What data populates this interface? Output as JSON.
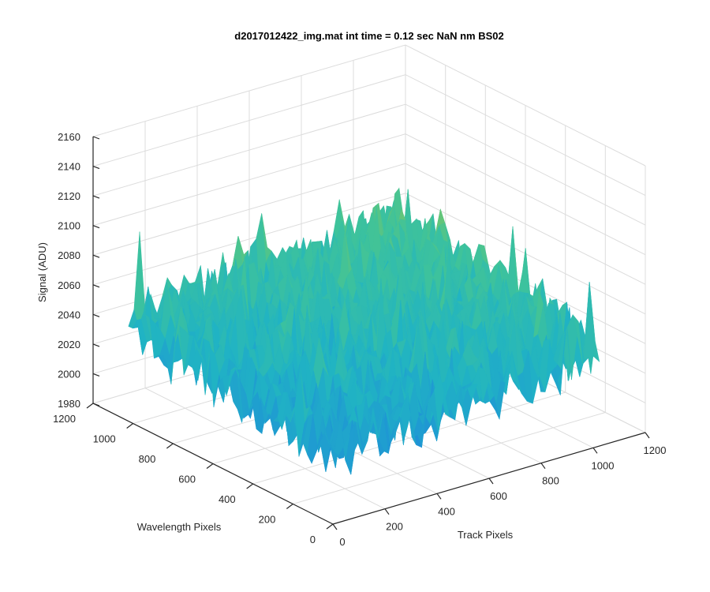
{
  "window": {
    "title": "d2017012422_img.mat int time = 0.12 sec  NaN nm BS02"
  },
  "chart_data": {
    "type": "surface",
    "title": "d2017012422_img.mat int time = 0.12 sec  NaN nm BS02",
    "xlabel": "Track Pixels",
    "ylabel": "Wavelength Pixels",
    "zlabel": "Signal (ADU)",
    "xlim": [
      0,
      1200
    ],
    "ylim": [
      0,
      1200
    ],
    "zlim": [
      1980,
      2160
    ],
    "x_ticks": [
      0,
      200,
      400,
      600,
      800,
      1000,
      1200
    ],
    "y_ticks": [
      0,
      200,
      400,
      600,
      800,
      1000,
      1200
    ],
    "z_ticks": [
      1980,
      2000,
      2020,
      2040,
      2060,
      2080,
      2100,
      2120,
      2140,
      2160
    ],
    "x_tick_labels": [
      "0",
      "200",
      "400",
      "600",
      "800",
      "1000",
      "1200"
    ],
    "y_tick_labels": [
      "0",
      "200",
      "400",
      "600",
      "800",
      "1000",
      "1200"
    ],
    "z_tick_labels": [
      "1980",
      "2000",
      "2020",
      "2040",
      "2060",
      "2080",
      "2100",
      "2120",
      "2140",
      "2160"
    ],
    "data_extent": {
      "x": [
        1,
        1024
      ],
      "y": [
        1,
        1024
      ]
    },
    "surface_summary": {
      "min_signal": 1990,
      "max_signal": 2145,
      "typical_signal": 2040,
      "note_mean_low_corner": 2025,
      "note_mean_high_corner": 2070
    },
    "colormap": [
      "#1f5fd1",
      "#1f8fd8",
      "#20b3c4",
      "#3fc39a",
      "#88c75a",
      "#c9c43e",
      "#e6c232"
    ],
    "grid": true,
    "legend": "none"
  }
}
